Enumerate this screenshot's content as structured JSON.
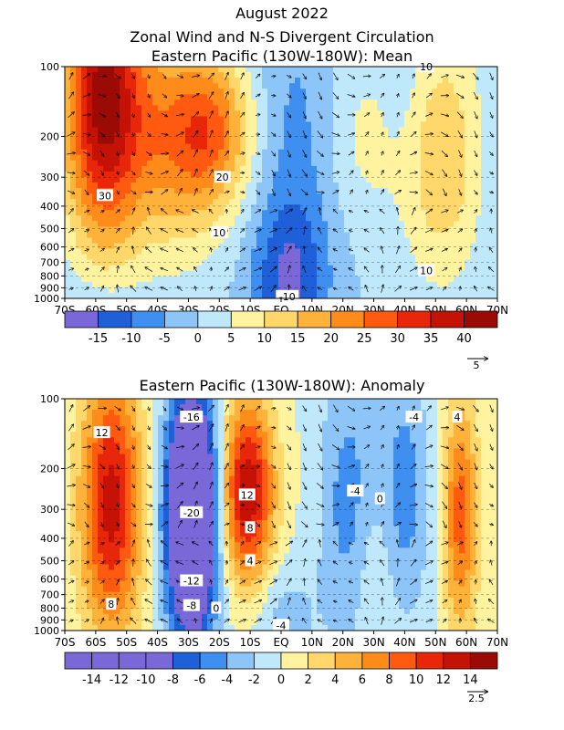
{
  "header": {
    "title": "August 2022",
    "subtitle": "Zonal Wind and N-S Divergent Circulation"
  },
  "colors": {
    "scale": [
      "#7b68d8",
      "#1f5fd8",
      "#3f8ff0",
      "#8ec5f8",
      "#bfe8fb",
      "#fff3a0",
      "#ffd76a",
      "#ffb23a",
      "#ff8c1a",
      "#ff5a0f",
      "#e8260a",
      "#c41206",
      "#9c0a06"
    ]
  },
  "chart_data": [
    {
      "type": "heatmap",
      "title": "Eastern Pacific (130W-180W): Mean",
      "x_ticks": [
        "70S",
        "60S",
        "50S",
        "40S",
        "30S",
        "20S",
        "10S",
        "EQ",
        "10N",
        "20N",
        "30N",
        "40N",
        "50N",
        "60N",
        "70N"
      ],
      "y_ticks": [
        100,
        200,
        300,
        400,
        500,
        600,
        700,
        800,
        900,
        1000
      ],
      "y_scale": "log-pressure (reversed)",
      "ylim": [
        1000,
        100
      ],
      "contour_labels": [
        {
          "text": "10",
          "lat": 47,
          "p": 100
        },
        {
          "text": "20",
          "lat": -19,
          "p": 300
        },
        {
          "text": "30",
          "lat": -57,
          "p": 360
        },
        {
          "text": "10",
          "lat": -20,
          "p": 520
        },
        {
          "text": "10",
          "lat": 47,
          "p": 760
        },
        {
          "text": "-10",
          "lat": 2,
          "p": 980
        }
      ],
      "colorbar": {
        "levels": [
          -15,
          -10,
          -5,
          0,
          5,
          10,
          15,
          20,
          25,
          30,
          35,
          40
        ],
        "tick_labels": [
          "-15",
          "-10",
          "-5",
          "0",
          "5",
          "10",
          "15",
          "20",
          "25",
          "30",
          "35",
          "40"
        ]
      },
      "vector_reference": "5"
    },
    {
      "type": "heatmap",
      "title": "Eastern Pacific (130W-180W): Anomaly",
      "x_ticks": [
        "70S",
        "60S",
        "50S",
        "40S",
        "30S",
        "20S",
        "10S",
        "EQ",
        "10N",
        "20N",
        "30N",
        "40N",
        "50N",
        "60N",
        "70N"
      ],
      "y_ticks": [
        100,
        200,
        300,
        400,
        500,
        600,
        700,
        800,
        900,
        1000
      ],
      "y_scale": "log-pressure (reversed)",
      "ylim": [
        1000,
        100
      ],
      "contour_labels": [
        {
          "text": "12",
          "lat": -58,
          "p": 140
        },
        {
          "text": "-16",
          "lat": -29,
          "p": 120
        },
        {
          "text": "-4",
          "lat": 43,
          "p": 120
        },
        {
          "text": "4",
          "lat": 57,
          "p": 120
        },
        {
          "text": "-4",
          "lat": 24,
          "p": 250
        },
        {
          "text": "0",
          "lat": 32,
          "p": 270
        },
        {
          "text": "12",
          "lat": -11,
          "p": 260
        },
        {
          "text": "-20",
          "lat": -29,
          "p": 310
        },
        {
          "text": "8",
          "lat": -10,
          "p": 360
        },
        {
          "text": "4",
          "lat": -10,
          "p": 500
        },
        {
          "text": "-12",
          "lat": -29,
          "p": 610
        },
        {
          "text": "-8",
          "lat": -29,
          "p": 780
        },
        {
          "text": "8",
          "lat": -55,
          "p": 770
        },
        {
          "text": "0",
          "lat": -21,
          "p": 800
        },
        {
          "text": "-4",
          "lat": 0,
          "p": 950
        }
      ],
      "colorbar": {
        "levels": [
          -14,
          -12,
          -10,
          -8,
          -6,
          -4,
          -2,
          0,
          2,
          4,
          6,
          8,
          10,
          12,
          14
        ],
        "tick_labels": [
          "-14",
          "-12",
          "-10",
          "-8",
          "-6",
          "-4",
          "-2",
          "0",
          "2",
          "4",
          "6",
          "8",
          "10",
          "12",
          "14"
        ]
      },
      "vector_reference": "2.5"
    }
  ]
}
